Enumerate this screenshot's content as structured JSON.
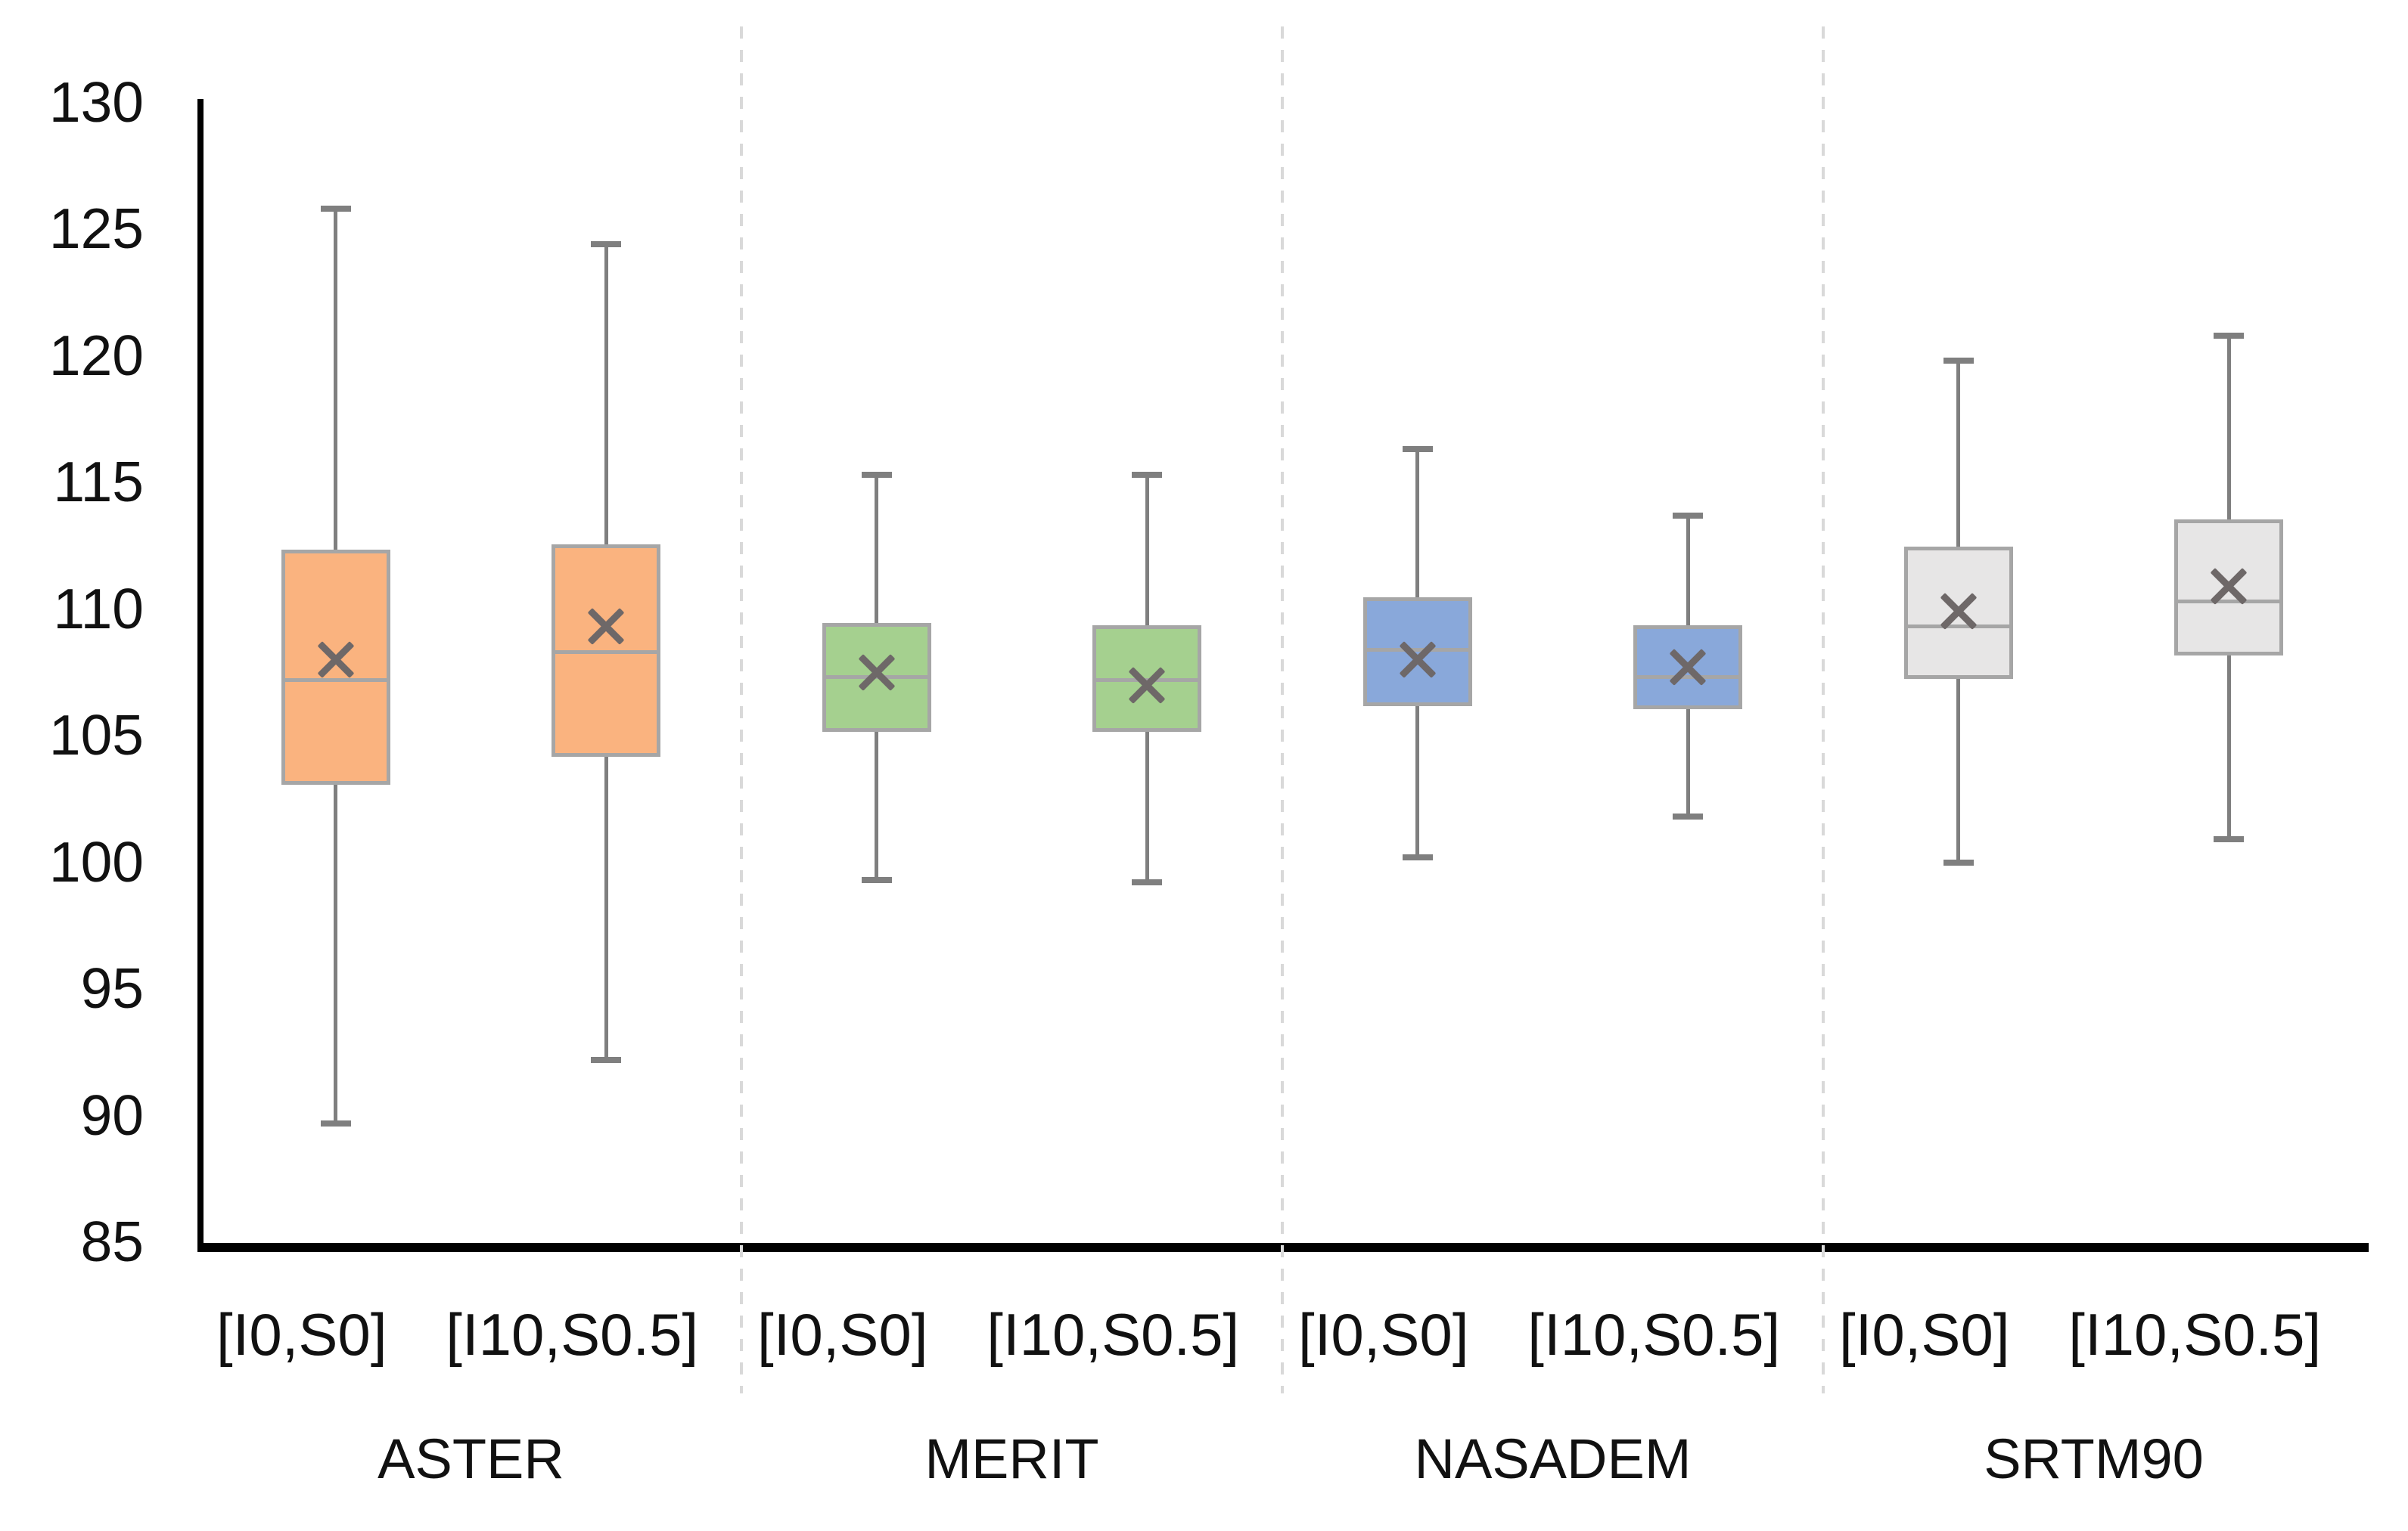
{
  "chart_data": {
    "type": "box",
    "title": "",
    "xlabel": "",
    "ylabel": "",
    "legend_position": "none",
    "grid": false,
    "y_axis": {
      "min": 85,
      "max": 130,
      "tick_step": 5,
      "tick_labels": [
        "130",
        "125",
        "120",
        "115",
        "110",
        "105",
        "100",
        "95",
        "90",
        "85"
      ]
    },
    "series_labels": [
      "[I0,S0]",
      "[I10,S0.5]"
    ],
    "groups": [
      {
        "label": "ASTER",
        "fill_color": "#FAB37F",
        "boxes": [
          {
            "label": "[I0,S0]",
            "min": 89.7,
            "q1": 103.2,
            "median": 107.2,
            "mean": 108.0,
            "q3": 112.2,
            "max": 125.8
          },
          {
            "label": "[I10,S0.5]",
            "min": 92.2,
            "q1": 104.3,
            "median": 108.3,
            "mean": 109.3,
            "q3": 112.4,
            "max": 124.4
          }
        ]
      },
      {
        "label": "MERIT",
        "fill_color": "#A5D08F",
        "boxes": [
          {
            "label": "[I0,S0]",
            "min": 99.3,
            "q1": 105.3,
            "median": 107.3,
            "mean": 107.5,
            "q3": 109.3,
            "max": 115.3
          },
          {
            "label": "[I10,S0.5]",
            "min": 99.2,
            "q1": 105.3,
            "median": 107.2,
            "mean": 107.0,
            "q3": 109.2,
            "max": 115.3
          }
        ]
      },
      {
        "label": "NASADEM",
        "fill_color": "#89A8DA",
        "boxes": [
          {
            "label": "[I0,S0]",
            "min": 100.2,
            "q1": 106.3,
            "median": 108.4,
            "mean": 108.0,
            "q3": 110.3,
            "max": 116.3
          },
          {
            "label": "[I10,S0.5]",
            "min": 101.8,
            "q1": 106.2,
            "median": 107.3,
            "mean": 107.7,
            "q3": 109.2,
            "max": 113.7
          }
        ]
      },
      {
        "label": "SRTM90",
        "fill_color": "#E7E6E6",
        "boxes": [
          {
            "label": "[I0,S0]",
            "min": 100.0,
            "q1": 107.4,
            "median": 109.3,
            "mean": 109.9,
            "q3": 112.3,
            "max": 119.8
          },
          {
            "label": "[I10,S0.5]",
            "min": 100.9,
            "q1": 108.3,
            "median": 110.3,
            "mean": 110.9,
            "q3": 113.4,
            "max": 120.8
          }
        ]
      }
    ],
    "style_colors": {
      "box_border": "#A6A6A6",
      "median_line": "#A6A6A6",
      "whisker": "#7F7F7F",
      "mean_marker": "#6E6868",
      "group_separator": "#D9D9D9",
      "axis_line": "#000000",
      "text": "#111111"
    }
  }
}
